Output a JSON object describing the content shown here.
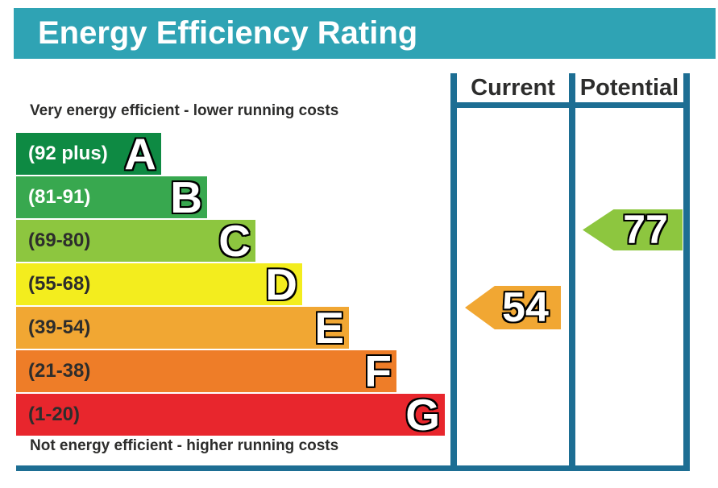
{
  "title": "Energy Efficiency Rating",
  "colors": {
    "title_bar_bg": "#2fa3b4",
    "title_text": "#ffffff",
    "frame": "#1d6e93",
    "label_text": "#2d2d2c"
  },
  "chart_data": {
    "type": "bar",
    "title": "Energy Efficiency Rating",
    "column_headers": [
      "Current",
      "Potential"
    ],
    "top_note": "Very energy efficient - lower running costs",
    "bottom_note": "Not energy efficient - higher running costs",
    "scale_min": 1,
    "scale_max": 100,
    "bands": [
      {
        "letter": "A",
        "label": "(92 plus)",
        "min": 92,
        "max": 100,
        "color": "#0e8a43",
        "label_color": "#ffffff"
      },
      {
        "letter": "B",
        "label": "(81-91)",
        "min": 81,
        "max": 91,
        "color": "#38a84f",
        "label_color": "#ffffff"
      },
      {
        "letter": "C",
        "label": "(69-80)",
        "min": 69,
        "max": 80,
        "color": "#8dc63f",
        "label_color": "#2d2d2c"
      },
      {
        "letter": "D",
        "label": "(55-68)",
        "min": 55,
        "max": 68,
        "color": "#f3ed1e",
        "label_color": "#2d2d2c"
      },
      {
        "letter": "E",
        "label": "(39-54)",
        "min": 39,
        "max": 54,
        "color": "#f1a733",
        "label_color": "#2d2d2c"
      },
      {
        "letter": "F",
        "label": "(21-38)",
        "min": 21,
        "max": 38,
        "color": "#ee7d28",
        "label_color": "#2d2d2c"
      },
      {
        "letter": "G",
        "label": "(1-20)",
        "min": 1,
        "max": 20,
        "color": "#e8262d",
        "label_color": "#2d2d2c"
      }
    ],
    "current": {
      "value": 54,
      "band": "E",
      "arrow_color": "#f1a733"
    },
    "potential": {
      "value": 77,
      "band": "C",
      "arrow_color": "#8dc63f"
    }
  }
}
